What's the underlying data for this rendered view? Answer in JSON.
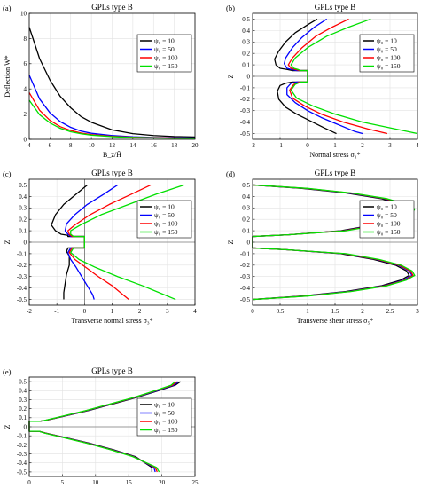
{
  "figure": {
    "legend_labels": [
      "ψ₀ = 10",
      "ψ₀ = 50",
      "ψ₀ = 100",
      "ψ₀ = 150"
    ],
    "series_colors": [
      "#000000",
      "#0000ff",
      "#ff0000",
      "#00e000"
    ]
  },
  "chart_data": [
    {
      "panel_label": "(a)",
      "type": "line",
      "title": "GPLs type B",
      "xlabel": "B_z/H̃",
      "ylabel": "Deflection W̃*",
      "xlim": [
        4,
        20
      ],
      "ylim": [
        0,
        10
      ],
      "xticks": [
        "4",
        "6",
        "8",
        "10",
        "12",
        "14",
        "16",
        "18",
        "20"
      ],
      "yticks": [
        "0",
        "2",
        "4",
        "6",
        "8",
        "10"
      ],
      "grid": true,
      "legend_position": "top-right",
      "series": [
        {
          "name": "ψ₀ = 10",
          "x": [
            4,
            5,
            6,
            7,
            8,
            9,
            10,
            12,
            14,
            16,
            18,
            20
          ],
          "y": [
            8.9,
            6.4,
            4.7,
            3.4,
            2.5,
            1.8,
            1.35,
            0.75,
            0.45,
            0.3,
            0.22,
            0.18
          ]
        },
        {
          "name": "ψ₀ = 50",
          "x": [
            4,
            5,
            6,
            7,
            8,
            9,
            10,
            12,
            14,
            16,
            18,
            20
          ],
          "y": [
            5.1,
            3.2,
            2.1,
            1.4,
            0.95,
            0.65,
            0.48,
            0.3,
            0.2,
            0.15,
            0.12,
            0.1
          ]
        },
        {
          "name": "ψ₀ = 100",
          "x": [
            4,
            5,
            6,
            7,
            8,
            9,
            10,
            12,
            14,
            16,
            18,
            20
          ],
          "y": [
            3.7,
            2.3,
            1.5,
            1.0,
            0.7,
            0.5,
            0.38,
            0.24,
            0.17,
            0.13,
            0.1,
            0.09
          ]
        },
        {
          "name": "ψ₀ = 150",
          "x": [
            4,
            5,
            6,
            7,
            8,
            9,
            10,
            12,
            14,
            16,
            18,
            20
          ],
          "y": [
            3.1,
            1.95,
            1.3,
            0.87,
            0.6,
            0.44,
            0.33,
            0.21,
            0.15,
            0.11,
            0.09,
            0.08
          ]
        }
      ]
    },
    {
      "panel_label": "(b)",
      "type": "line",
      "title": "GPLs type B",
      "xlabel": "Normal stress σ₁*",
      "ylabel": "Z",
      "xlim": [
        -2,
        4
      ],
      "ylim": [
        -0.55,
        0.55
      ],
      "xticks": [
        "-2",
        "-1",
        "0",
        "1",
        "2",
        "3",
        "4"
      ],
      "yticks": [
        "0.5",
        "0.4",
        "0.3",
        "0.2",
        "0.1",
        "0",
        "-0.1",
        "-0.2",
        "-0.3",
        "-0.4",
        "-0.5"
      ],
      "grid": true,
      "legend_position": "top-right",
      "series": [
        {
          "name": "ψ₀ = 10",
          "x": [
            0.35,
            0.0,
            -0.45,
            -0.8,
            -1.05,
            -1.2,
            -1.15,
            -1.0,
            -0.75,
            -0.55,
            0.0,
            0.0,
            -0.55,
            -0.8,
            -1.0,
            -1.1,
            -1.05,
            -0.8,
            -0.4,
            0.1,
            0.6,
            1.05
          ],
          "y": [
            0.5,
            0.45,
            0.38,
            0.3,
            0.22,
            0.15,
            0.1,
            0.07,
            0.06,
            0.05,
            0.05,
            -0.05,
            -0.05,
            -0.06,
            -0.08,
            -0.13,
            -0.2,
            -0.27,
            -0.33,
            -0.39,
            -0.45,
            -0.5
          ]
        },
        {
          "name": "ψ₀ = 50",
          "x": [
            0.7,
            0.25,
            -0.2,
            -0.55,
            -0.8,
            -0.85,
            -0.75,
            -0.6,
            -0.4,
            0.0,
            0.0,
            -0.4,
            -0.6,
            -0.75,
            -0.75,
            -0.45,
            0.0,
            0.5,
            1.1,
            1.7,
            2.0
          ],
          "y": [
            0.5,
            0.43,
            0.34,
            0.25,
            0.16,
            0.11,
            0.07,
            0.06,
            0.05,
            0.05,
            -0.05,
            -0.05,
            -0.06,
            -0.1,
            -0.16,
            -0.23,
            -0.3,
            -0.36,
            -0.42,
            -0.48,
            -0.5
          ]
        },
        {
          "name": "ψ₀ = 100",
          "x": [
            1.5,
            0.9,
            0.3,
            -0.2,
            -0.55,
            -0.7,
            -0.6,
            -0.45,
            -0.3,
            0.0,
            0.0,
            -0.3,
            -0.5,
            -0.65,
            -0.55,
            -0.1,
            0.5,
            1.3,
            2.2,
            2.9
          ],
          "y": [
            0.5,
            0.43,
            0.35,
            0.25,
            0.16,
            0.1,
            0.07,
            0.06,
            0.05,
            0.05,
            -0.05,
            -0.05,
            -0.07,
            -0.12,
            -0.19,
            -0.26,
            -0.33,
            -0.4,
            -0.46,
            -0.5
          ]
        },
        {
          "name": "ψ₀ = 150",
          "x": [
            2.3,
            1.5,
            0.7,
            0.0,
            -0.45,
            -0.6,
            -0.5,
            -0.35,
            -0.25,
            0.0,
            0.0,
            -0.25,
            -0.45,
            -0.6,
            -0.4,
            0.2,
            1.0,
            2.0,
            3.2,
            4.0
          ],
          "y": [
            0.5,
            0.43,
            0.35,
            0.25,
            0.16,
            0.1,
            0.07,
            0.06,
            0.05,
            0.05,
            -0.05,
            -0.05,
            -0.07,
            -0.12,
            -0.19,
            -0.26,
            -0.33,
            -0.4,
            -0.46,
            -0.5
          ]
        }
      ]
    },
    {
      "panel_label": "(c)",
      "type": "line",
      "title": "GPLs type B",
      "xlabel": "Transverse normal stress σ₃*",
      "ylabel": "Z",
      "xlim": [
        -2,
        4
      ],
      "ylim": [
        -0.55,
        0.55
      ],
      "xticks": [
        "-2",
        "-1",
        "0",
        "1",
        "2",
        "3",
        "4"
      ],
      "yticks": [
        "0.5",
        "0.4",
        "0.3",
        "0.2",
        "0.1",
        "0",
        "-0.1",
        "-0.2",
        "-0.3",
        "-0.4",
        "-0.5"
      ],
      "grid": true,
      "legend_position": "top-right",
      "series": [
        {
          "name": "ψ₀ = 10",
          "x": [
            0.1,
            -0.3,
            -0.75,
            -1.05,
            -1.2,
            -1.05,
            -0.85,
            -0.6,
            -0.6,
            0.0,
            0.0,
            -0.6,
            -0.65,
            -0.55,
            -0.55,
            -0.65,
            -0.7,
            -0.75,
            -0.75
          ],
          "y": [
            0.5,
            0.42,
            0.33,
            0.24,
            0.15,
            0.1,
            0.07,
            0.06,
            0.05,
            0.05,
            -0.05,
            -0.05,
            -0.08,
            -0.12,
            -0.2,
            -0.28,
            -0.36,
            -0.44,
            -0.5
          ]
        },
        {
          "name": "ψ₀ = 50",
          "x": [
            1.2,
            0.7,
            0.1,
            -0.35,
            -0.65,
            -0.7,
            -0.6,
            -0.5,
            0.0,
            0.0,
            -0.5,
            -0.6,
            -0.5,
            -0.3,
            -0.1,
            0.1,
            0.3,
            0.35
          ],
          "y": [
            0.5,
            0.42,
            0.33,
            0.24,
            0.16,
            0.1,
            0.07,
            0.05,
            0.05,
            -0.05,
            -0.05,
            -0.09,
            -0.15,
            -0.22,
            -0.3,
            -0.38,
            -0.46,
            -0.5
          ]
        },
        {
          "name": "ψ₀ = 100",
          "x": [
            2.4,
            1.7,
            0.9,
            0.2,
            -0.35,
            -0.6,
            -0.55,
            -0.45,
            0.0,
            0.0,
            -0.45,
            -0.55,
            -0.35,
            0.05,
            0.5,
            1.0,
            1.4,
            1.6
          ],
          "y": [
            0.5,
            0.42,
            0.33,
            0.24,
            0.15,
            0.1,
            0.07,
            0.05,
            0.05,
            -0.05,
            -0.05,
            -0.09,
            -0.15,
            -0.22,
            -0.3,
            -0.38,
            -0.46,
            -0.5
          ]
        },
        {
          "name": "ψ₀ = 150",
          "x": [
            3.6,
            2.6,
            1.6,
            0.6,
            -0.15,
            -0.5,
            -0.5,
            -0.4,
            0.0,
            0.0,
            -0.4,
            -0.5,
            -0.2,
            0.4,
            1.2,
            2.1,
            2.9,
            3.3
          ],
          "y": [
            0.5,
            0.42,
            0.33,
            0.24,
            0.15,
            0.1,
            0.07,
            0.05,
            0.05,
            -0.05,
            -0.05,
            -0.09,
            -0.15,
            -0.22,
            -0.3,
            -0.38,
            -0.46,
            -0.5
          ]
        }
      ]
    },
    {
      "panel_label": "(d)",
      "type": "line",
      "title": "GPLs type B",
      "xlabel": "Transverse shear stress σ₅*",
      "ylabel": "Z",
      "xlim": [
        0,
        3
      ],
      "ylim": [
        -0.55,
        0.55
      ],
      "xticks": [
        "0",
        "0.5",
        "1",
        "1.5",
        "2",
        "2.5",
        "3"
      ],
      "yticks": [
        "0.5",
        "0.4",
        "0.3",
        "0.2",
        "0.1",
        "0",
        "-0.1",
        "-0.2",
        "-0.3",
        "-0.4",
        "-0.5"
      ],
      "grid": true,
      "legend_position": "top-right",
      "series": [
        {
          "name": "ψ₀ = 10",
          "x": [
            0.0,
            0.9,
            1.7,
            2.35,
            2.7,
            2.85,
            2.8,
            2.6,
            2.2,
            1.6,
            0.65,
            0.0,
            0.0,
            0.6,
            1.6,
            2.2,
            2.6,
            2.8,
            2.85,
            2.7,
            2.35,
            1.7,
            0.9,
            0.0
          ],
          "y": [
            0.5,
            0.47,
            0.43,
            0.38,
            0.33,
            0.29,
            0.25,
            0.2,
            0.15,
            0.1,
            0.065,
            0.05,
            -0.05,
            -0.065,
            -0.1,
            -0.15,
            -0.2,
            -0.25,
            -0.29,
            -0.33,
            -0.38,
            -0.43,
            -0.47,
            -0.5
          ]
        },
        {
          "name": "ψ₀ = 50",
          "x": [
            0.0,
            0.95,
            1.75,
            2.4,
            2.75,
            2.9,
            2.85,
            2.65,
            2.25,
            1.65,
            0.65,
            0.0,
            0.0,
            0.6,
            1.65,
            2.25,
            2.65,
            2.85,
            2.9,
            2.75,
            2.4,
            1.75,
            0.95,
            0.0
          ],
          "y": [
            0.5,
            0.47,
            0.43,
            0.38,
            0.33,
            0.29,
            0.25,
            0.2,
            0.15,
            0.1,
            0.065,
            0.05,
            -0.05,
            -0.065,
            -0.1,
            -0.15,
            -0.2,
            -0.25,
            -0.29,
            -0.33,
            -0.38,
            -0.43,
            -0.47,
            -0.5
          ]
        },
        {
          "name": "ψ₀ = 100",
          "x": [
            0.0,
            0.97,
            1.78,
            2.42,
            2.78,
            2.92,
            2.87,
            2.67,
            2.27,
            1.67,
            0.65,
            0.0,
            0.0,
            0.6,
            1.67,
            2.27,
            2.67,
            2.87,
            2.92,
            2.78,
            2.42,
            1.78,
            0.97,
            0.0
          ],
          "y": [
            0.5,
            0.47,
            0.43,
            0.38,
            0.33,
            0.29,
            0.25,
            0.2,
            0.15,
            0.1,
            0.065,
            0.05,
            -0.05,
            -0.065,
            -0.1,
            -0.15,
            -0.2,
            -0.25,
            -0.29,
            -0.33,
            -0.38,
            -0.43,
            -0.47,
            -0.5
          ]
        },
        {
          "name": "ψ₀ = 150",
          "x": [
            0.0,
            1.0,
            1.8,
            2.45,
            2.8,
            2.95,
            2.9,
            2.7,
            2.3,
            1.7,
            0.65,
            0.0,
            0.0,
            0.6,
            1.7,
            2.3,
            2.7,
            2.9,
            2.95,
            2.8,
            2.45,
            1.8,
            1.0,
            0.0
          ],
          "y": [
            0.5,
            0.47,
            0.43,
            0.38,
            0.33,
            0.29,
            0.25,
            0.2,
            0.15,
            0.1,
            0.065,
            0.05,
            -0.05,
            -0.065,
            -0.1,
            -0.15,
            -0.2,
            -0.25,
            -0.29,
            -0.33,
            -0.38,
            -0.43,
            -0.47,
            -0.5
          ]
        }
      ]
    },
    {
      "panel_label": "(e)",
      "type": "line",
      "title": "GPLs type B",
      "xlabel": "In-plane shear stress σ₆*",
      "ylabel": "Z",
      "xlim": [
        0,
        25
      ],
      "ylim": [
        -0.55,
        0.55
      ],
      "xticks": [
        "0",
        "5",
        "10",
        "15",
        "20",
        "25"
      ],
      "yticks": [
        "0.5",
        "0.4",
        "0.3",
        "0.2",
        "0.1",
        "0",
        "-0.1",
        "-0.2",
        "-0.3",
        "-0.4",
        "-0.5"
      ],
      "grid": true,
      "legend_position": "top-right",
      "series": [
        {
          "name": "ψ₀ = 10",
          "x": [
            22.8,
            22.0,
            19.5,
            16.0,
            12.5,
            9.0,
            5.5,
            2.5,
            1.5,
            0.0,
            0.0,
            1.5,
            2.5,
            5.5,
            9.0,
            12.5,
            16.0,
            18.5,
            18.5
          ],
          "y": [
            0.5,
            0.46,
            0.4,
            0.32,
            0.25,
            0.18,
            0.12,
            0.07,
            0.06,
            0.06,
            -0.05,
            -0.05,
            -0.07,
            -0.12,
            -0.18,
            -0.25,
            -0.33,
            -0.45,
            -0.5
          ]
        },
        {
          "name": "ψ₀ = 50",
          "x": [
            22.5,
            21.8,
            19.3,
            15.8,
            12.3,
            8.8,
            5.4,
            2.4,
            1.5,
            0.0,
            0.0,
            1.5,
            2.4,
            5.4,
            8.8,
            12.3,
            15.8,
            18.8,
            19.0
          ],
          "y": [
            0.5,
            0.46,
            0.4,
            0.32,
            0.25,
            0.18,
            0.12,
            0.07,
            0.06,
            0.06,
            -0.05,
            -0.05,
            -0.07,
            -0.12,
            -0.18,
            -0.25,
            -0.33,
            -0.45,
            -0.5
          ]
        },
        {
          "name": "ψ₀ = 100",
          "x": [
            22.3,
            21.6,
            19.1,
            15.7,
            12.2,
            8.7,
            5.3,
            2.4,
            1.5,
            0.0,
            0.0,
            1.5,
            2.4,
            5.3,
            8.7,
            12.2,
            15.7,
            19.0,
            19.3
          ],
          "y": [
            0.5,
            0.46,
            0.4,
            0.32,
            0.25,
            0.18,
            0.12,
            0.07,
            0.06,
            0.06,
            -0.05,
            -0.05,
            -0.07,
            -0.12,
            -0.18,
            -0.25,
            -0.33,
            -0.45,
            -0.5
          ]
        },
        {
          "name": "ψ₀ = 150",
          "x": [
            22.0,
            21.4,
            19.0,
            15.6,
            12.1,
            8.6,
            5.2,
            2.3,
            1.5,
            0.0,
            0.0,
            1.5,
            2.3,
            5.2,
            8.6,
            12.1,
            15.6,
            19.2,
            19.6
          ],
          "y": [
            0.5,
            0.46,
            0.4,
            0.32,
            0.25,
            0.18,
            0.12,
            0.07,
            0.06,
            0.06,
            -0.05,
            -0.05,
            -0.07,
            -0.12,
            -0.18,
            -0.25,
            -0.33,
            -0.45,
            -0.5
          ]
        }
      ]
    }
  ]
}
